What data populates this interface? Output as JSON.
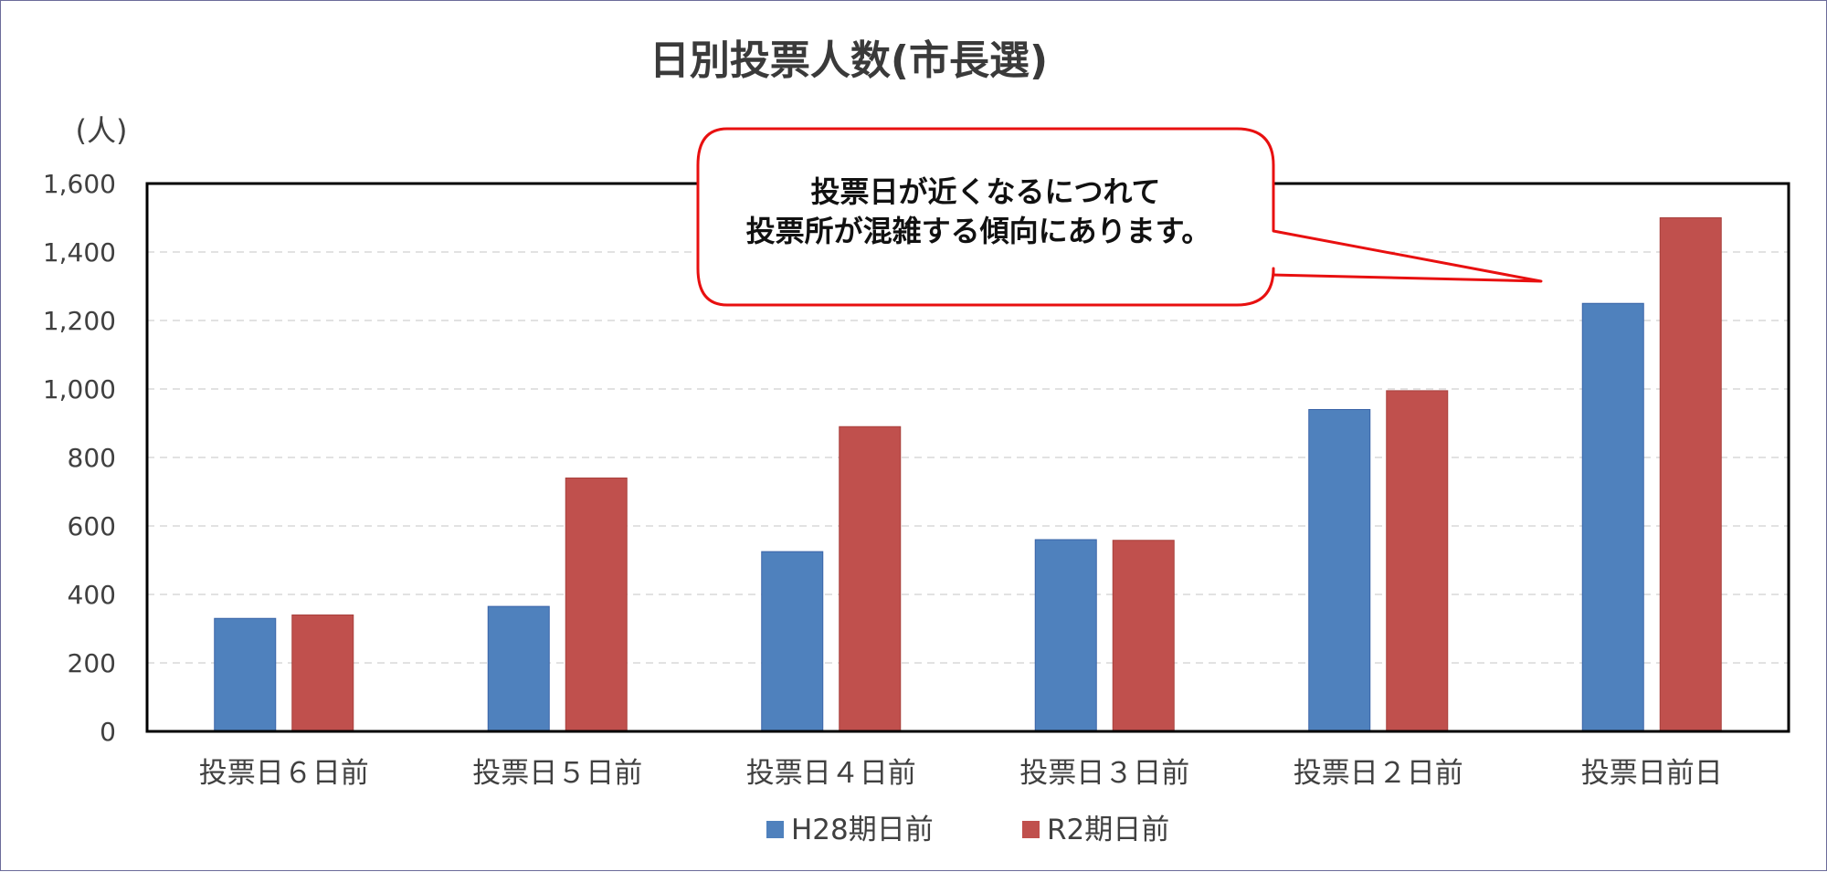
{
  "chart_data": {
    "type": "bar",
    "title": "日別投票人数(市長選)",
    "ylabel": "(人)",
    "xlabel": "",
    "ylim": [
      0,
      1600
    ],
    "yticks": [
      0,
      200,
      400,
      600,
      800,
      1000,
      1200,
      1400,
      1600
    ],
    "ytick_labels": [
      "0",
      "200",
      "400",
      "600",
      "800",
      "1,000",
      "1,200",
      "1,400",
      "1,600"
    ],
    "grid": true,
    "legend_position": "bottom",
    "categories": [
      "投票日６日前",
      "投票日５日前",
      "投票日４日前",
      "投票日３日前",
      "投票日２日前",
      "投票日前日"
    ],
    "series": [
      {
        "name": "H28期日前",
        "color": "#4f81bd",
        "values": [
          330,
          365,
          525,
          560,
          940,
          1250
        ]
      },
      {
        "name": "R2期日前",
        "color": "#c0504d",
        "values": [
          340,
          740,
          890,
          558,
          995,
          1500
        ]
      }
    ],
    "annotation": {
      "lines": [
        "投票日が近くなるにつれて",
        "投票所が混雑する傾向にあります。"
      ],
      "border_color": "#e81010"
    }
  }
}
